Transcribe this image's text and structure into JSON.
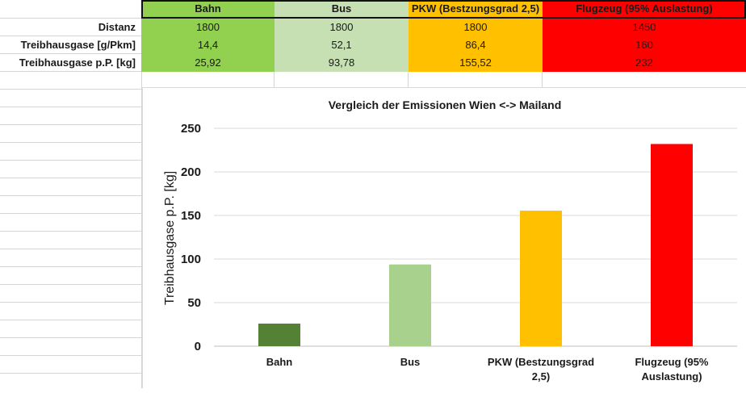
{
  "table": {
    "columns": [
      {
        "label": "Bahn",
        "color": "#92d050"
      },
      {
        "label": "Bus",
        "color": "#c6e0b4"
      },
      {
        "label": "PKW (Bestzungsgrad 2,5)",
        "color": "#ffc000"
      },
      {
        "label": "Flugzeug (95% Auslastung)",
        "color": "#ff0000"
      }
    ],
    "rows": [
      {
        "label": "Distanz",
        "values": [
          "1800",
          "1800",
          "1800",
          "1450"
        ]
      },
      {
        "label": "Treibhausgase [g/Pkm]",
        "values": [
          "14,4",
          "52,1",
          "86,4",
          "160"
        ]
      },
      {
        "label": "Treibhausgase p.P. [kg]",
        "values": [
          "25,92",
          "93,78",
          "155,52",
          "232"
        ]
      }
    ]
  },
  "chart_data": {
    "type": "bar",
    "title": "Vergleich der Emissionen Wien <-> Mailand",
    "ylabel": "Treibhausgase p.P. [kg]",
    "xlabel": "",
    "categories": [
      "Bahn",
      "Bus",
      "PKW (Bestzungsgrad 2,5)",
      "Flugzeug (95% Auslastung)"
    ],
    "category_label_lines": [
      [
        "Bahn"
      ],
      [
        "Bus"
      ],
      [
        "PKW (Bestzungsgrad",
        "2,5)"
      ],
      [
        "Flugzeug (95%",
        "Auslastung)"
      ]
    ],
    "values": [
      25.92,
      93.78,
      155.52,
      232
    ],
    "bar_colors": [
      "#548235",
      "#a9d18e",
      "#ffc000",
      "#ff0000"
    ],
    "ylim": [
      0,
      250
    ],
    "yticks": [
      0,
      50,
      100,
      150,
      200,
      250
    ],
    "grid": true,
    "legend": "none"
  }
}
